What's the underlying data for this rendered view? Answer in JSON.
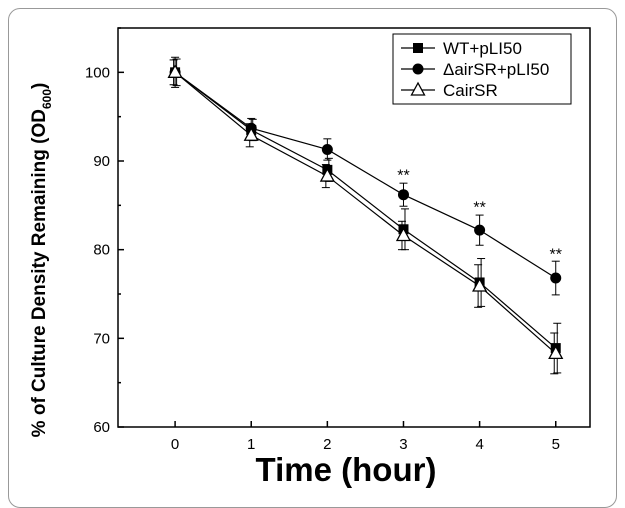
{
  "chart_data": {
    "type": "line",
    "xlabel": "Time (hour)",
    "ylabel_main": "% of Culture Density Remaining (OD",
    "ylabel_sub": "600",
    "ylabel_close": ")",
    "x": [
      0,
      1,
      2,
      3,
      4,
      5
    ],
    "xlim": [
      -0.75,
      5.45
    ],
    "ylim": [
      60,
      105
    ],
    "xticks": [
      "0",
      "1",
      "2",
      "3",
      "4",
      "5"
    ],
    "yticks": [
      "60",
      "70",
      "80",
      "90",
      "100"
    ],
    "legend_position": "top-right",
    "series": [
      {
        "name": "WT+pLI50",
        "marker": "square",
        "values": [
          100,
          93.5,
          89,
          82.3,
          76.3,
          68.9
        ],
        "errors": [
          1.5,
          1.2,
          1.3,
          2.3,
          2.7,
          2.8
        ]
      },
      {
        "name": "ΔairSR+pLI50",
        "marker": "circle",
        "values": [
          100,
          93.7,
          91.3,
          86.2,
          82.2,
          76.8
        ],
        "errors": [
          1.7,
          1.1,
          1.2,
          1.3,
          1.7,
          1.9
        ]
      },
      {
        "name": "CairSR",
        "marker": "triangle",
        "values": [
          100,
          92.9,
          88.3,
          81.6,
          75.9,
          68.3
        ],
        "errors": [
          1.4,
          1.3,
          1.3,
          1.6,
          2.4,
          2.3
        ]
      }
    ],
    "annotations": [
      {
        "x": 3,
        "y": 87.8,
        "text": "**"
      },
      {
        "x": 4,
        "y": 84.2,
        "text": "**"
      },
      {
        "x": 5,
        "y": 78.9,
        "text": "**"
      }
    ]
  }
}
